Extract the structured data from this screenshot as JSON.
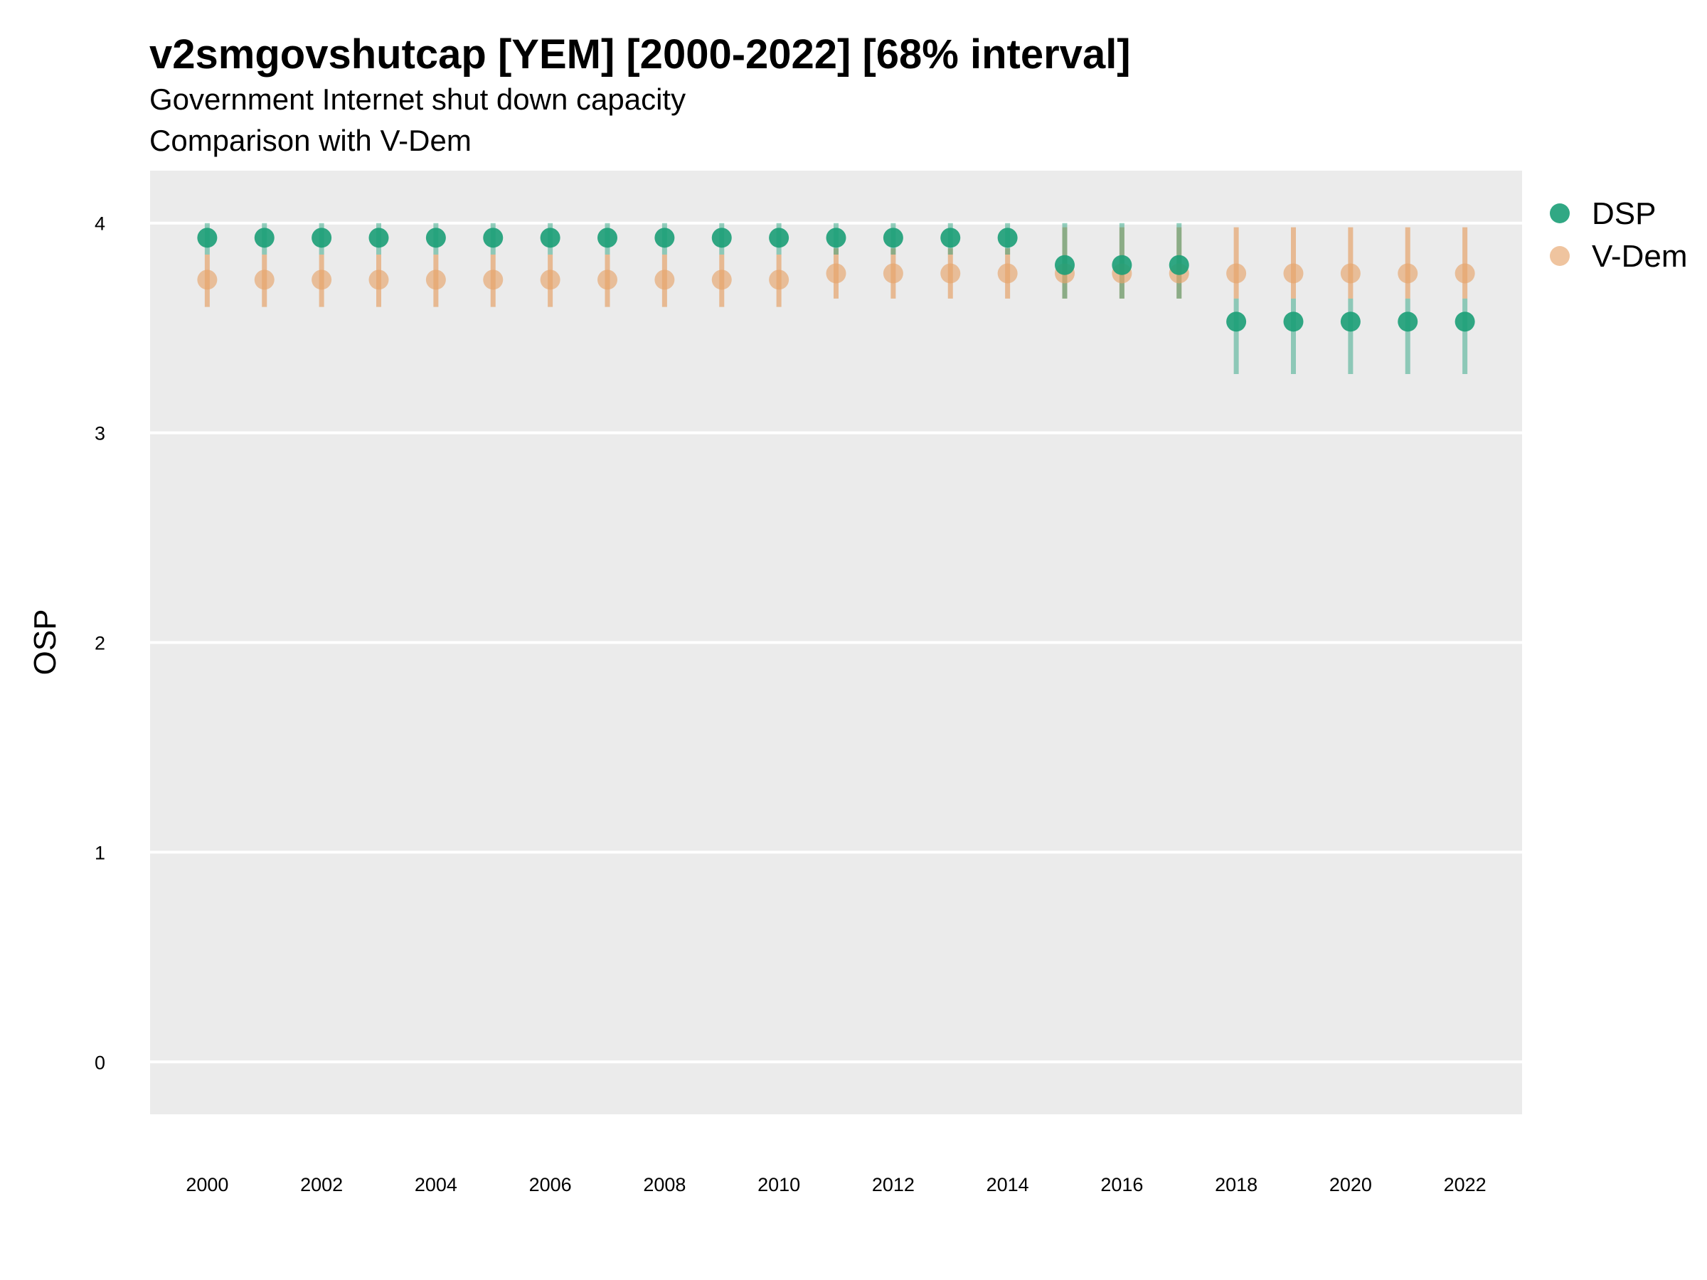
{
  "chart_data": {
    "type": "scatter",
    "title": "v2smgovshutcap [YEM] [2000-2022] [68% interval]",
    "subtitle": [
      "Government Internet shut down capacity",
      "Comparison with V-Dem"
    ],
    "xlabel": "",
    "ylabel": "OSP",
    "xlim": [
      1999,
      2023
    ],
    "ylim": [
      -0.25,
      4.25
    ],
    "x_ticks": [
      "2000",
      "2002",
      "2004",
      "2006",
      "2008",
      "2010",
      "2012",
      "2014",
      "2016",
      "2018",
      "2020",
      "2022"
    ],
    "y_ticks": [
      "0",
      "1",
      "2",
      "3",
      "4"
    ],
    "grid": true,
    "legend_position": "right",
    "x": [
      2000,
      2001,
      2002,
      2003,
      2004,
      2005,
      2006,
      2007,
      2008,
      2009,
      2010,
      2011,
      2012,
      2013,
      2014,
      2015,
      2016,
      2017,
      2018,
      2019,
      2020,
      2021,
      2022
    ],
    "series": [
      {
        "name": "DSP",
        "color": "#1B9E77",
        "values": [
          3.93,
          3.93,
          3.93,
          3.93,
          3.93,
          3.93,
          3.93,
          3.93,
          3.93,
          3.93,
          3.93,
          3.93,
          3.93,
          3.93,
          3.93,
          3.8,
          3.8,
          3.8,
          3.53,
          3.53,
          3.53,
          3.53,
          3.53
        ],
        "lower": [
          3.85,
          3.85,
          3.85,
          3.85,
          3.85,
          3.85,
          3.85,
          3.85,
          3.85,
          3.85,
          3.85,
          3.85,
          3.85,
          3.85,
          3.85,
          3.64,
          3.64,
          3.64,
          3.28,
          3.28,
          3.28,
          3.28,
          3.28
        ],
        "upper": [
          4.0,
          4.0,
          4.0,
          4.0,
          4.0,
          4.0,
          4.0,
          4.0,
          4.0,
          4.0,
          4.0,
          4.0,
          4.0,
          4.0,
          4.0,
          4.0,
          4.0,
          4.0,
          3.64,
          3.64,
          3.64,
          3.64,
          3.64
        ]
      },
      {
        "name": "V-Dem",
        "color": "#E6A46C",
        "values": [
          3.73,
          3.73,
          3.73,
          3.73,
          3.73,
          3.73,
          3.73,
          3.73,
          3.73,
          3.73,
          3.73,
          3.76,
          3.76,
          3.76,
          3.76,
          3.76,
          3.76,
          3.76,
          3.76,
          3.76,
          3.76,
          3.76,
          3.76
        ],
        "lower": [
          3.6,
          3.6,
          3.6,
          3.6,
          3.6,
          3.6,
          3.6,
          3.6,
          3.6,
          3.6,
          3.6,
          3.64,
          3.64,
          3.64,
          3.64,
          3.64,
          3.64,
          3.64,
          3.64,
          3.64,
          3.64,
          3.64,
          3.64
        ],
        "upper": [
          3.85,
          3.85,
          3.85,
          3.85,
          3.85,
          3.85,
          3.85,
          3.85,
          3.85,
          3.85,
          3.85,
          3.88,
          3.88,
          3.88,
          3.88,
          3.98,
          3.98,
          3.98,
          3.98,
          3.98,
          3.98,
          3.98,
          3.98
        ]
      }
    ]
  }
}
